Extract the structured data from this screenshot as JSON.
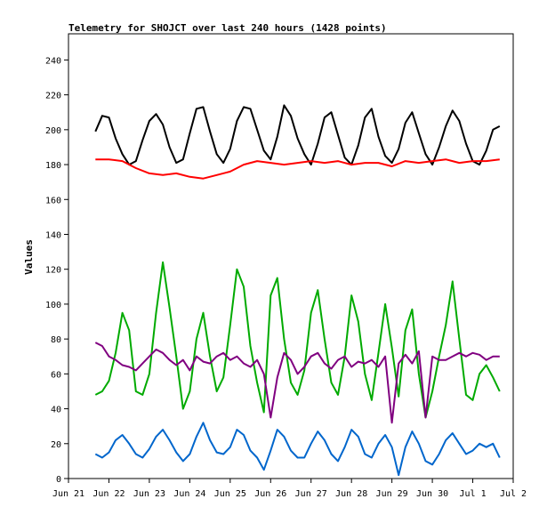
{
  "chart_data": {
    "type": "line",
    "title": "Telemetry for SHOJCT over last 240 hours (1428 points)",
    "xlabel": "",
    "ylabel": "Values",
    "ylim": [
      0,
      255
    ],
    "xlim": [
      "2024-06-21T00:00",
      "2024-07-02T00:00"
    ],
    "x_ticks": [
      "Jun 21",
      "Jun 22",
      "Jun 23",
      "Jun 24",
      "Jun 25",
      "Jun 26",
      "Jun 27",
      "Jun 28",
      "Jun 29",
      "Jun 30",
      "Jul 1",
      "Jul 2"
    ],
    "y_ticks": [
      0,
      20,
      40,
      60,
      80,
      100,
      120,
      140,
      160,
      180,
      200,
      220,
      240
    ],
    "grid": false,
    "legend": "none",
    "series": [
      {
        "color": "#000000",
        "x": [
          "2024-06-21T16:00",
          "2024-06-21T20:00",
          "2024-06-22T00:00",
          "2024-06-22T04:00",
          "2024-06-22T08:00",
          "2024-06-22T12:00",
          "2024-06-22T16:00",
          "2024-06-22T20:00",
          "2024-06-23T00:00",
          "2024-06-23T04:00",
          "2024-06-23T08:00",
          "2024-06-23T12:00",
          "2024-06-23T16:00",
          "2024-06-23T20:00",
          "2024-06-24T00:00",
          "2024-06-24T04:00",
          "2024-06-24T08:00",
          "2024-06-24T12:00",
          "2024-06-24T16:00",
          "2024-06-24T20:00",
          "2024-06-25T00:00",
          "2024-06-25T04:00",
          "2024-06-25T08:00",
          "2024-06-25T12:00",
          "2024-06-25T16:00",
          "2024-06-25T20:00",
          "2024-06-26T00:00",
          "2024-06-26T04:00",
          "2024-06-26T08:00",
          "2024-06-26T12:00",
          "2024-06-26T16:00",
          "2024-06-26T20:00",
          "2024-06-27T00:00",
          "2024-06-27T04:00",
          "2024-06-27T08:00",
          "2024-06-27T12:00",
          "2024-06-27T16:00",
          "2024-06-27T20:00",
          "2024-06-28T00:00",
          "2024-06-28T04:00",
          "2024-06-28T08:00",
          "2024-06-28T12:00",
          "2024-06-28T16:00",
          "2024-06-28T20:00",
          "2024-06-29T00:00",
          "2024-06-29T04:00",
          "2024-06-29T08:00",
          "2024-06-29T12:00",
          "2024-06-29T16:00",
          "2024-06-29T20:00",
          "2024-06-30T00:00",
          "2024-06-30T04:00",
          "2024-06-30T08:00",
          "2024-06-30T12:00",
          "2024-06-30T16:00",
          "2024-06-30T20:00",
          "2024-07-01T00:00",
          "2024-07-01T04:00",
          "2024-07-01T08:00",
          "2024-07-01T12:00",
          "2024-07-01T16:00"
        ],
        "values": [
          199,
          208,
          207,
          195,
          186,
          180,
          182,
          194,
          205,
          209,
          203,
          190,
          181,
          183,
          198,
          212,
          213,
          199,
          186,
          181,
          189,
          205,
          213,
          212,
          200,
          188,
          183,
          196,
          214,
          208,
          195,
          186,
          180,
          192,
          207,
          210,
          197,
          184,
          180,
          191,
          207,
          212,
          196,
          185,
          181,
          189,
          204,
          210,
          198,
          186,
          180,
          190,
          202,
          211,
          205,
          192,
          182,
          180,
          188,
          200,
          202
        ]
      },
      {
        "color": "#ff0000",
        "x": [
          "2024-06-21T16:00",
          "2024-06-22T00:00",
          "2024-06-22T08:00",
          "2024-06-22T16:00",
          "2024-06-23T00:00",
          "2024-06-23T08:00",
          "2024-06-23T16:00",
          "2024-06-24T00:00",
          "2024-06-24T08:00",
          "2024-06-24T16:00",
          "2024-06-25T00:00",
          "2024-06-25T08:00",
          "2024-06-25T16:00",
          "2024-06-26T00:00",
          "2024-06-26T08:00",
          "2024-06-26T16:00",
          "2024-06-27T00:00",
          "2024-06-27T08:00",
          "2024-06-27T16:00",
          "2024-06-28T00:00",
          "2024-06-28T08:00",
          "2024-06-28T16:00",
          "2024-06-29T00:00",
          "2024-06-29T08:00",
          "2024-06-29T16:00",
          "2024-06-30T00:00",
          "2024-06-30T08:00",
          "2024-06-30T16:00",
          "2024-07-01T00:00",
          "2024-07-01T08:00",
          "2024-07-01T16:00"
        ],
        "values": [
          183,
          183,
          182,
          178,
          175,
          174,
          175,
          173,
          172,
          174,
          176,
          180,
          182,
          181,
          180,
          181,
          182,
          181,
          182,
          180,
          181,
          181,
          179,
          182,
          181,
          182,
          183,
          181,
          182,
          182,
          183
        ]
      },
      {
        "color": "#00aa00",
        "x": [
          "2024-06-21T16:00",
          "2024-06-21T20:00",
          "2024-06-22T00:00",
          "2024-06-22T04:00",
          "2024-06-22T08:00",
          "2024-06-22T12:00",
          "2024-06-22T16:00",
          "2024-06-22T20:00",
          "2024-06-23T00:00",
          "2024-06-23T04:00",
          "2024-06-23T08:00",
          "2024-06-23T12:00",
          "2024-06-23T16:00",
          "2024-06-23T20:00",
          "2024-06-24T00:00",
          "2024-06-24T04:00",
          "2024-06-24T08:00",
          "2024-06-24T12:00",
          "2024-06-24T16:00",
          "2024-06-24T20:00",
          "2024-06-25T00:00",
          "2024-06-25T04:00",
          "2024-06-25T08:00",
          "2024-06-25T12:00",
          "2024-06-25T16:00",
          "2024-06-25T20:00",
          "2024-06-26T00:00",
          "2024-06-26T04:00",
          "2024-06-26T08:00",
          "2024-06-26T12:00",
          "2024-06-26T16:00",
          "2024-06-26T20:00",
          "2024-06-27T00:00",
          "2024-06-27T04:00",
          "2024-06-27T08:00",
          "2024-06-27T12:00",
          "2024-06-27T16:00",
          "2024-06-27T20:00",
          "2024-06-28T00:00",
          "2024-06-28T04:00",
          "2024-06-28T08:00",
          "2024-06-28T12:00",
          "2024-06-28T16:00",
          "2024-06-28T20:00",
          "2024-06-29T00:00",
          "2024-06-29T04:00",
          "2024-06-29T08:00",
          "2024-06-29T12:00",
          "2024-06-29T16:00",
          "2024-06-29T20:00",
          "2024-06-30T00:00",
          "2024-06-30T04:00",
          "2024-06-30T08:00",
          "2024-06-30T12:00",
          "2024-06-30T16:00",
          "2024-06-30T20:00",
          "2024-07-01T00:00",
          "2024-07-01T04:00",
          "2024-07-01T08:00",
          "2024-07-01T12:00",
          "2024-07-01T16:00"
        ],
        "values": [
          48,
          50,
          56,
          72,
          95,
          85,
          50,
          48,
          60,
          95,
          124,
          98,
          70,
          40,
          50,
          80,
          95,
          70,
          50,
          58,
          88,
          120,
          110,
          76,
          55,
          38,
          105,
          115,
          80,
          55,
          48,
          62,
          95,
          108,
          80,
          55,
          48,
          70,
          105,
          90,
          60,
          45,
          72,
          100,
          75,
          47,
          85,
          97,
          60,
          35,
          50,
          70,
          88,
          113,
          80,
          48,
          45,
          60,
          65,
          58,
          50
        ]
      },
      {
        "color": "#800080",
        "x": [
          "2024-06-21T16:00",
          "2024-06-21T20:00",
          "2024-06-22T00:00",
          "2024-06-22T04:00",
          "2024-06-22T08:00",
          "2024-06-22T12:00",
          "2024-06-22T16:00",
          "2024-06-22T20:00",
          "2024-06-23T00:00",
          "2024-06-23T04:00",
          "2024-06-23T08:00",
          "2024-06-23T12:00",
          "2024-06-23T16:00",
          "2024-06-23T20:00",
          "2024-06-24T00:00",
          "2024-06-24T04:00",
          "2024-06-24T08:00",
          "2024-06-24T12:00",
          "2024-06-24T16:00",
          "2024-06-24T20:00",
          "2024-06-25T00:00",
          "2024-06-25T04:00",
          "2024-06-25T08:00",
          "2024-06-25T12:00",
          "2024-06-25T16:00",
          "2024-06-25T20:00",
          "2024-06-26T00:00",
          "2024-06-26T04:00",
          "2024-06-26T08:00",
          "2024-06-26T12:00",
          "2024-06-26T16:00",
          "2024-06-26T20:00",
          "2024-06-27T00:00",
          "2024-06-27T04:00",
          "2024-06-27T08:00",
          "2024-06-27T12:00",
          "2024-06-27T16:00",
          "2024-06-27T20:00",
          "2024-06-28T00:00",
          "2024-06-28T04:00",
          "2024-06-28T08:00",
          "2024-06-28T12:00",
          "2024-06-28T16:00",
          "2024-06-28T20:00",
          "2024-06-29T00:00",
          "2024-06-29T04:00",
          "2024-06-29T08:00",
          "2024-06-29T12:00",
          "2024-06-29T16:00",
          "2024-06-29T20:00",
          "2024-06-30T00:00",
          "2024-06-30T04:00",
          "2024-06-30T08:00",
          "2024-06-30T12:00",
          "2024-06-30T16:00",
          "2024-06-30T20:00",
          "2024-07-01T00:00",
          "2024-07-01T04:00",
          "2024-07-01T08:00",
          "2024-07-01T12:00",
          "2024-07-01T16:00"
        ],
        "values": [
          78,
          76,
          70,
          68,
          65,
          64,
          62,
          66,
          70,
          74,
          72,
          68,
          65,
          68,
          62,
          70,
          67,
          66,
          70,
          72,
          68,
          70,
          66,
          64,
          68,
          60,
          35,
          58,
          72,
          68,
          60,
          64,
          70,
          72,
          66,
          63,
          68,
          70,
          64,
          67,
          66,
          68,
          64,
          70,
          32,
          66,
          71,
          66,
          73,
          35,
          70,
          68,
          68,
          70,
          72,
          70,
          72,
          71,
          68,
          70,
          70
        ]
      },
      {
        "color": "#0066cc",
        "x": [
          "2024-06-21T16:00",
          "2024-06-21T20:00",
          "2024-06-22T00:00",
          "2024-06-22T04:00",
          "2024-06-22T08:00",
          "2024-06-22T12:00",
          "2024-06-22T16:00",
          "2024-06-22T20:00",
          "2024-06-23T00:00",
          "2024-06-23T04:00",
          "2024-06-23T08:00",
          "2024-06-23T12:00",
          "2024-06-23T16:00",
          "2024-06-23T20:00",
          "2024-06-24T00:00",
          "2024-06-24T04:00",
          "2024-06-24T08:00",
          "2024-06-24T12:00",
          "2024-06-24T16:00",
          "2024-06-24T20:00",
          "2024-06-25T00:00",
          "2024-06-25T04:00",
          "2024-06-25T08:00",
          "2024-06-25T12:00",
          "2024-06-25T16:00",
          "2024-06-25T20:00",
          "2024-06-26T00:00",
          "2024-06-26T04:00",
          "2024-06-26T08:00",
          "2024-06-26T12:00",
          "2024-06-26T16:00",
          "2024-06-26T20:00",
          "2024-06-27T00:00",
          "2024-06-27T04:00",
          "2024-06-27T08:00",
          "2024-06-27T12:00",
          "2024-06-27T16:00",
          "2024-06-27T20:00",
          "2024-06-28T00:00",
          "2024-06-28T04:00",
          "2024-06-28T08:00",
          "2024-06-28T12:00",
          "2024-06-28T16:00",
          "2024-06-28T20:00",
          "2024-06-29T00:00",
          "2024-06-29T04:00",
          "2024-06-29T08:00",
          "2024-06-29T12:00",
          "2024-06-29T16:00",
          "2024-06-29T20:00",
          "2024-06-30T00:00",
          "2024-06-30T04:00",
          "2024-06-30T08:00",
          "2024-06-30T12:00",
          "2024-06-30T16:00",
          "2024-06-30T20:00",
          "2024-07-01T00:00",
          "2024-07-01T04:00",
          "2024-07-01T08:00",
          "2024-07-01T12:00",
          "2024-07-01T16:00"
        ],
        "values": [
          14,
          12,
          15,
          22,
          25,
          20,
          14,
          12,
          17,
          24,
          28,
          22,
          15,
          10,
          14,
          24,
          32,
          22,
          15,
          14,
          18,
          28,
          25,
          16,
          12,
          5,
          16,
          28,
          24,
          16,
          12,
          12,
          20,
          27,
          22,
          14,
          10,
          18,
          28,
          24,
          14,
          12,
          20,
          25,
          18,
          2,
          18,
          27,
          20,
          10,
          8,
          14,
          22,
          26,
          20,
          14,
          16,
          20,
          18,
          20,
          12
        ]
      }
    ]
  }
}
